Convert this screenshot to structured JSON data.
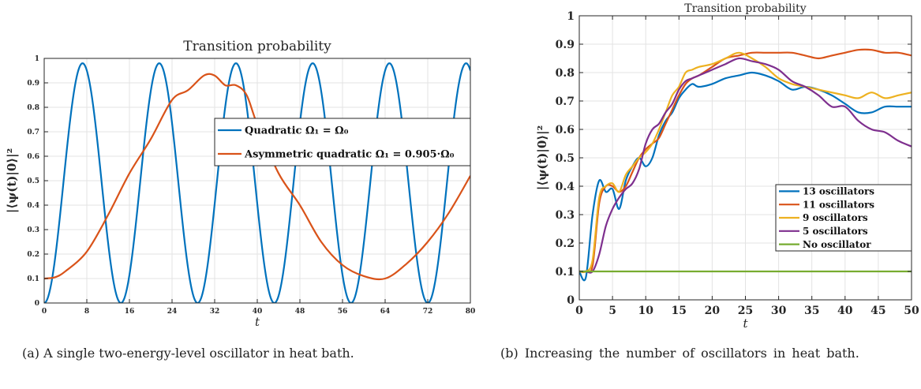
{
  "chart_data": [
    {
      "type": "line",
      "title": "Transition probability",
      "xlabel": "t",
      "ylabel": "|⟨ψ(t)|0⟩|²",
      "xlim": [
        0,
        80
      ],
      "ylim": [
        0,
        1
      ],
      "xticks": [
        "0",
        "8",
        "16",
        "24",
        "32",
        "40",
        "48",
        "56",
        "64",
        "72",
        "80"
      ],
      "yticks": [
        "0",
        "0.1",
        "0.2",
        "0.3",
        "0.4",
        "0.5",
        "0.6",
        "0.7",
        "0.8",
        "0.9",
        "1"
      ],
      "grid": true,
      "legend_position": "top-right",
      "series": [
        {
          "name": "Quadratic Ω₁ = Ω₀",
          "color": "#0072BD",
          "period": 14.4,
          "min": 0.0,
          "max": 0.98,
          "phase_start": 0
        },
        {
          "name": "Asymmetric quadratic Ω₁ = 0.905·Ω₀",
          "color": "#D95319",
          "x": [
            0,
            2,
            4,
            8,
            12,
            16,
            20,
            24,
            27,
            30,
            32,
            34,
            36,
            38,
            40,
            44,
            48,
            52,
            56,
            60,
            64,
            68,
            72,
            76,
            80
          ],
          "y": [
            0.1,
            0.105,
            0.13,
            0.21,
            0.36,
            0.53,
            0.67,
            0.83,
            0.87,
            0.93,
            0.93,
            0.89,
            0.89,
            0.85,
            0.73,
            0.53,
            0.4,
            0.25,
            0.155,
            0.11,
            0.1,
            0.16,
            0.25,
            0.37,
            0.52
          ]
        }
      ]
    },
    {
      "type": "line",
      "title": "Transition probability",
      "xlabel": "t",
      "ylabel": "|⟨ψ(t)|0⟩|²",
      "xlim": [
        0,
        50
      ],
      "ylim": [
        0,
        1
      ],
      "xticks": [
        "0",
        "5",
        "10",
        "15",
        "20",
        "25",
        "30",
        "35",
        "40",
        "45",
        "50"
      ],
      "yticks": [
        "0",
        "0.1",
        "0.2",
        "0.3",
        "0.4",
        "0.5",
        "0.6",
        "0.7",
        "0.8",
        "0.9",
        "1"
      ],
      "grid": true,
      "legend_position": "bottom-right",
      "series": [
        {
          "name": "13 oscillators",
          "color": "#0072BD",
          "x": [
            0,
            1,
            2,
            3,
            4,
            5,
            6,
            7,
            8,
            9,
            10,
            11,
            12,
            13,
            14,
            15,
            16,
            17,
            18,
            20,
            22,
            24,
            26,
            28,
            30,
            32,
            34,
            36,
            38,
            40,
            42,
            44,
            46,
            48,
            50
          ],
          "y": [
            0.1,
            0.08,
            0.3,
            0.42,
            0.38,
            0.39,
            0.32,
            0.42,
            0.47,
            0.5,
            0.47,
            0.5,
            0.58,
            0.63,
            0.66,
            0.71,
            0.74,
            0.76,
            0.75,
            0.76,
            0.78,
            0.79,
            0.8,
            0.79,
            0.77,
            0.74,
            0.75,
            0.74,
            0.72,
            0.69,
            0.66,
            0.66,
            0.68,
            0.68,
            0.68
          ]
        },
        {
          "name": "11 oscillators",
          "color": "#D95319",
          "x": [
            0,
            1,
            2,
            3,
            4,
            5,
            6,
            7,
            8,
            9,
            10,
            11,
            12,
            13,
            14,
            15,
            16,
            17,
            18,
            20,
            22,
            24,
            26,
            28,
            30,
            32,
            34,
            36,
            38,
            40,
            42,
            44,
            46,
            48,
            50
          ],
          "y": [
            0.1,
            0.1,
            0.12,
            0.34,
            0.4,
            0.4,
            0.38,
            0.4,
            0.45,
            0.5,
            0.53,
            0.55,
            0.57,
            0.62,
            0.67,
            0.72,
            0.76,
            0.78,
            0.79,
            0.82,
            0.85,
            0.86,
            0.87,
            0.87,
            0.87,
            0.87,
            0.86,
            0.85,
            0.86,
            0.87,
            0.88,
            0.88,
            0.87,
            0.87,
            0.86
          ]
        },
        {
          "name": "9 oscillators",
          "color": "#EDB120",
          "x": [
            0,
            1,
            2,
            3,
            4,
            5,
            6,
            7,
            8,
            9,
            10,
            11,
            12,
            13,
            14,
            15,
            16,
            17,
            18,
            20,
            22,
            24,
            26,
            28,
            30,
            32,
            34,
            36,
            38,
            40,
            42,
            44,
            46,
            48,
            50
          ],
          "y": [
            0.1,
            0.1,
            0.14,
            0.36,
            0.4,
            0.41,
            0.38,
            0.44,
            0.47,
            0.5,
            0.52,
            0.55,
            0.6,
            0.66,
            0.72,
            0.75,
            0.8,
            0.81,
            0.82,
            0.83,
            0.85,
            0.87,
            0.85,
            0.82,
            0.78,
            0.76,
            0.75,
            0.74,
            0.73,
            0.72,
            0.71,
            0.73,
            0.71,
            0.72,
            0.73
          ]
        },
        {
          "name": "5 oscillators",
          "color": "#7E2F8E",
          "x": [
            0,
            1,
            2,
            3,
            4,
            5,
            6,
            7,
            8,
            9,
            10,
            11,
            12,
            13,
            14,
            15,
            16,
            17,
            18,
            20,
            22,
            24,
            26,
            28,
            30,
            32,
            34,
            36,
            38,
            40,
            42,
            44,
            46,
            48,
            50
          ],
          "y": [
            0.1,
            0.1,
            0.1,
            0.16,
            0.26,
            0.32,
            0.36,
            0.39,
            0.41,
            0.46,
            0.55,
            0.6,
            0.62,
            0.66,
            0.69,
            0.74,
            0.77,
            0.78,
            0.79,
            0.81,
            0.83,
            0.85,
            0.84,
            0.83,
            0.81,
            0.77,
            0.75,
            0.72,
            0.68,
            0.68,
            0.63,
            0.6,
            0.59,
            0.56,
            0.54
          ]
        },
        {
          "name": "No oscillator",
          "color": "#77AC30",
          "x": [
            0,
            50
          ],
          "y": [
            0.1,
            0.1
          ]
        }
      ]
    }
  ],
  "captions": {
    "a": "(a) A single two-energy-level oscillator in heat bath.",
    "b": "(b) Increasing the number of oscillators in heat bath."
  }
}
